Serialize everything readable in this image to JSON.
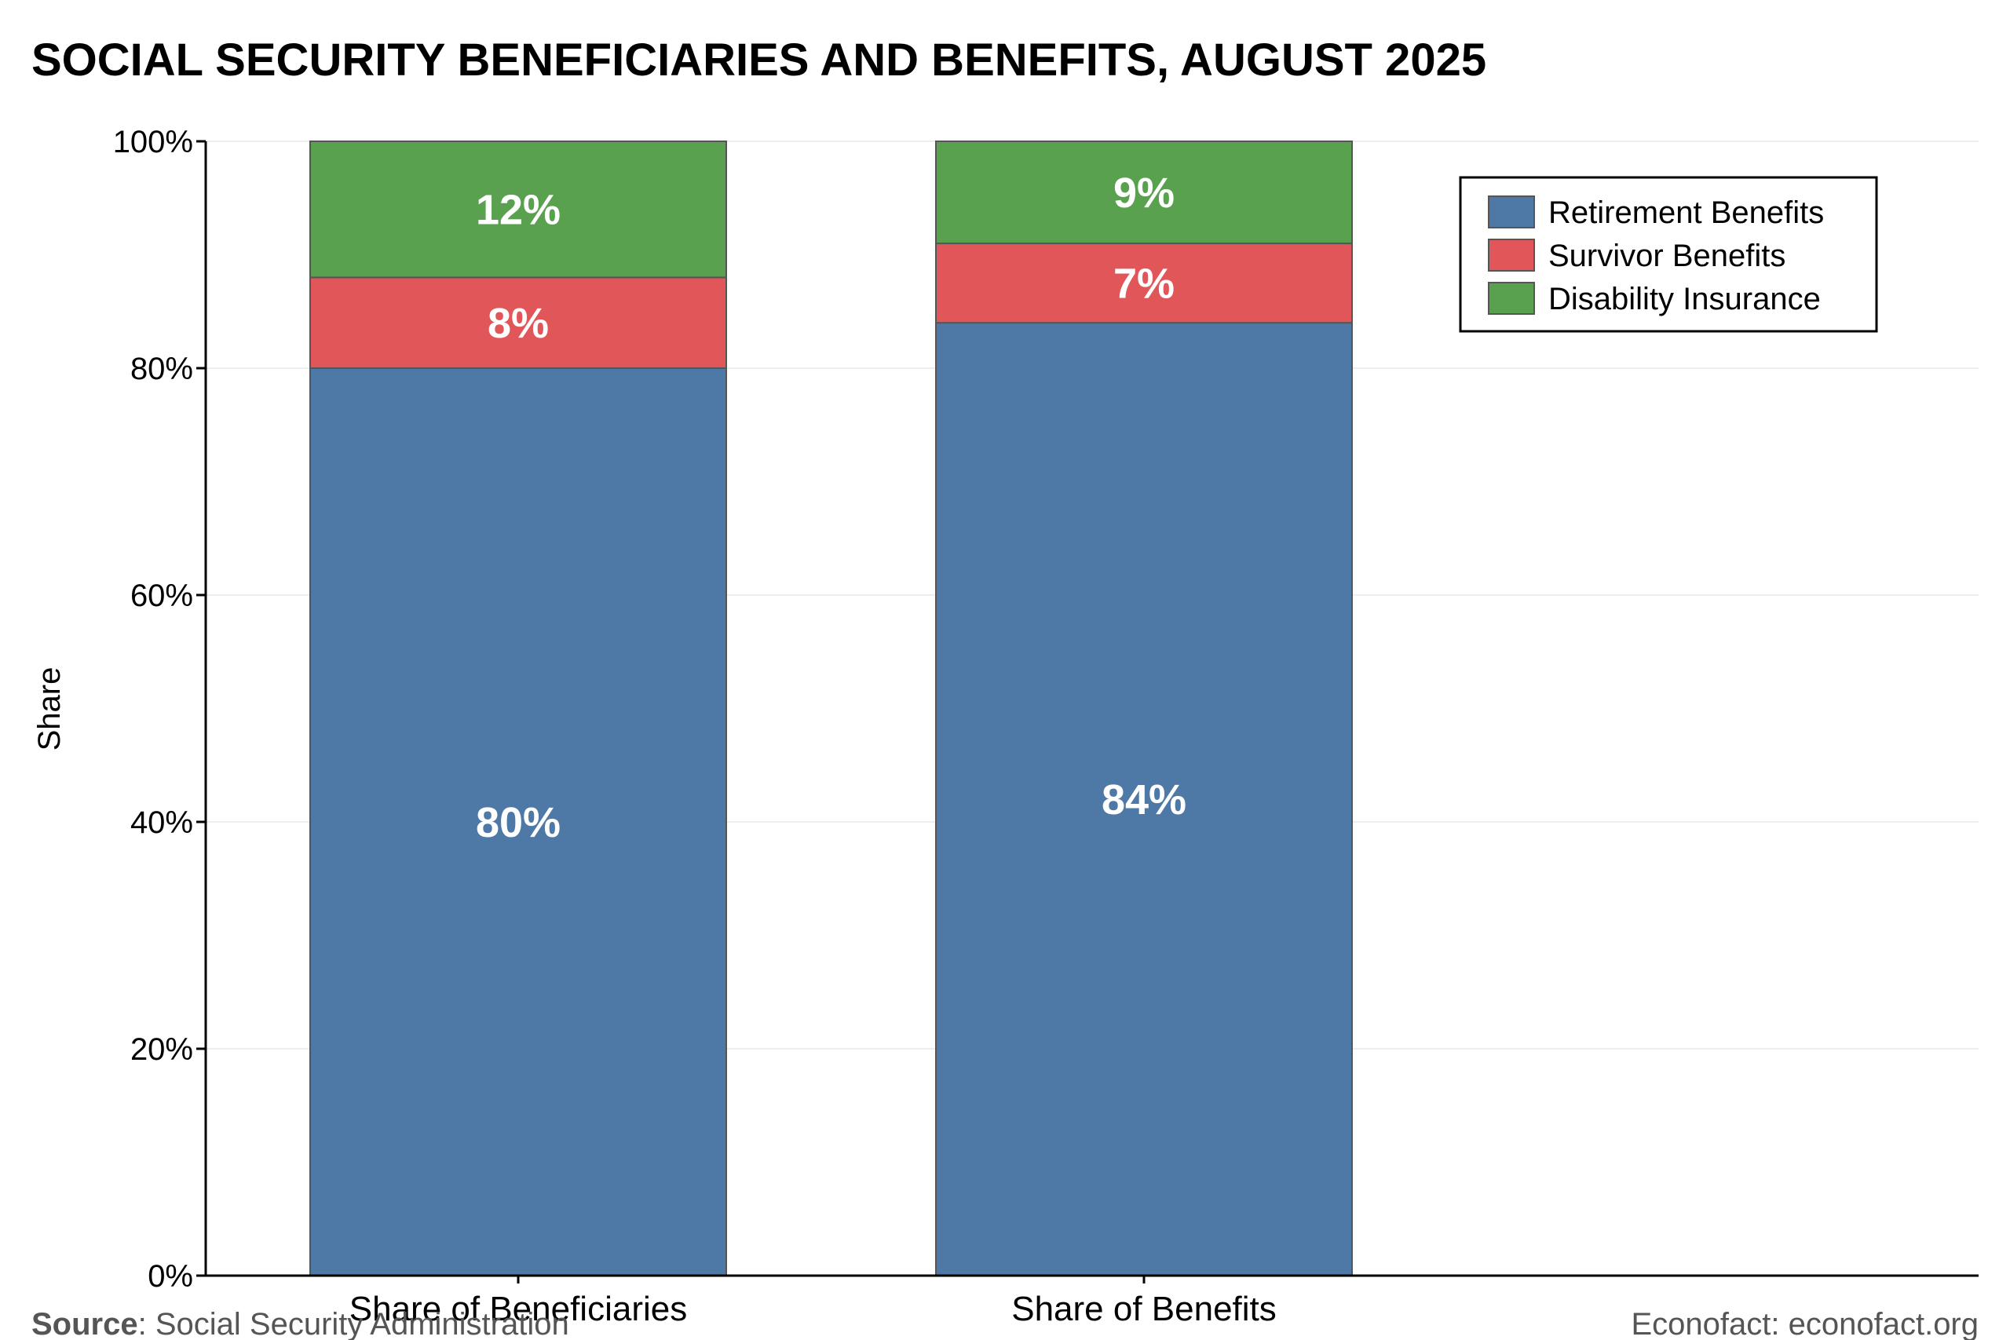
{
  "chart_data": {
    "type": "bar",
    "stacked": true,
    "title": "SOCIAL SECURITY BENEFICIARIES AND BENEFITS, AUGUST 2025",
    "ylabel": "Share",
    "xlabel": "",
    "ylim": [
      0,
      100
    ],
    "yticks": [
      0,
      20,
      40,
      60,
      80,
      100
    ],
    "ytick_labels": [
      "0%",
      "20%",
      "40%",
      "60%",
      "80%",
      "100%"
    ],
    "grid": true,
    "legend_position": "top-right",
    "categories": [
      "Share of Beneficiaries",
      "Share of Benefits"
    ],
    "series": [
      {
        "name": "Retirement Benefits",
        "color": "#4e79a7",
        "values": [
          80,
          84
        ],
        "labels": [
          "80%",
          "84%"
        ]
      },
      {
        "name": "Survivor Benefits",
        "color": "#e15759",
        "values": [
          8,
          7
        ],
        "labels": [
          "8%",
          "7%"
        ]
      },
      {
        "name": "Disability Insurance",
        "color": "#59a14f",
        "values": [
          12,
          9
        ],
        "labels": [
          "12%",
          "9%"
        ]
      }
    ]
  },
  "footer": {
    "source_label": "Source",
    "source_text": ": Social Security Administration",
    "credit": "Econofact: econofact.org"
  }
}
